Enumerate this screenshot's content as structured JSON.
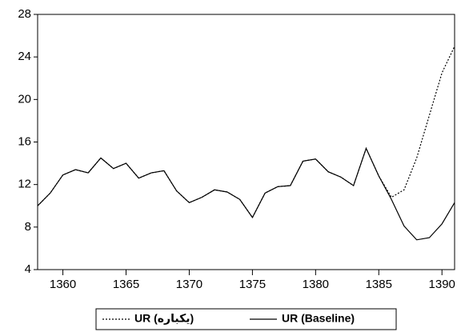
{
  "chart_data": {
    "type": "line",
    "x": [
      1358,
      1359,
      1360,
      1361,
      1362,
      1363,
      1364,
      1365,
      1366,
      1367,
      1368,
      1369,
      1370,
      1371,
      1372,
      1373,
      1374,
      1375,
      1376,
      1377,
      1378,
      1379,
      1380,
      1381,
      1382,
      1383,
      1384,
      1385,
      1386,
      1387,
      1388,
      1389,
      1390,
      1391
    ],
    "series": [
      {
        "name": "UR (یکباره)",
        "color": "#000000",
        "style": "dotted",
        "values": [
          10.0,
          11.2,
          12.9,
          13.4,
          13.1,
          14.5,
          13.5,
          14.0,
          12.6,
          13.1,
          13.3,
          11.4,
          10.3,
          10.8,
          11.5,
          11.3,
          10.6,
          8.9,
          11.2,
          11.8,
          11.9,
          14.2,
          14.4,
          13.2,
          12.7,
          11.9,
          15.4,
          12.8,
          10.8,
          11.5,
          14.5,
          18.5,
          22.5,
          25.0
        ]
      },
      {
        "name": "UR (Baseline)",
        "color": "#000000",
        "style": "solid",
        "values": [
          10.0,
          11.2,
          12.9,
          13.4,
          13.1,
          14.5,
          13.5,
          14.0,
          12.6,
          13.1,
          13.3,
          11.4,
          10.3,
          10.8,
          11.5,
          11.3,
          10.6,
          8.9,
          11.2,
          11.8,
          11.9,
          14.2,
          14.4,
          13.2,
          12.7,
          11.9,
          15.4,
          12.8,
          10.6,
          8.1,
          6.8,
          7.0,
          8.3,
          10.3
        ]
      }
    ],
    "xlim": [
      1358,
      1391
    ],
    "xticks": [
      1360,
      1365,
      1370,
      1375,
      1380,
      1385,
      1390
    ],
    "ylim": [
      4,
      28
    ],
    "yticks": [
      4,
      8,
      12,
      16,
      20,
      24,
      28
    ]
  }
}
